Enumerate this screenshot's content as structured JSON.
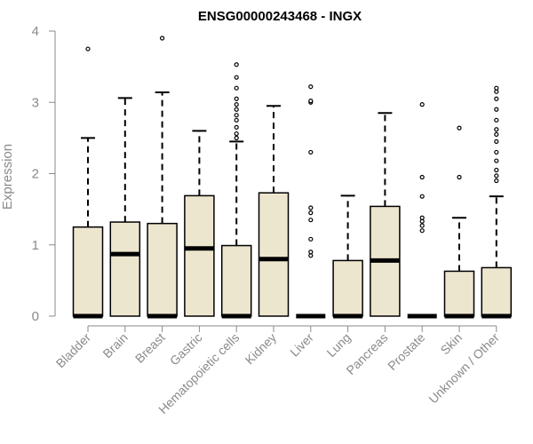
{
  "chart_data": {
    "type": "boxplot",
    "title": "ENSG00000243468 - INGX",
    "xlabel": "",
    "ylabel": "Expression",
    "ylim": [
      0,
      4
    ],
    "yticks": [
      0,
      1,
      2,
      3,
      4
    ],
    "grid": false,
    "legend": "none",
    "colors": {
      "box_fill": "#ede6cf",
      "box_stroke": "#000000",
      "axis": "#8a8a8a"
    },
    "categories": [
      "Bladder",
      "Brain",
      "Breast",
      "Gastric",
      "Hematopoietic cells",
      "Kidney",
      "Liver",
      "Lung",
      "Pancreas",
      "Prostate",
      "Skin",
      "Unknown / Other"
    ],
    "boxes": [
      {
        "q1": 0,
        "median": 0,
        "q3": 1.25,
        "whisker_low": 0,
        "whisker_high": 2.5,
        "outliers": [
          3.75
        ]
      },
      {
        "q1": 0,
        "median": 0.87,
        "q3": 1.32,
        "whisker_low": 0,
        "whisker_high": 3.06,
        "outliers": []
      },
      {
        "q1": 0,
        "median": 0,
        "q3": 1.3,
        "whisker_low": 0,
        "whisker_high": 3.14,
        "outliers": [
          3.9
        ]
      },
      {
        "q1": 0,
        "median": 0.95,
        "q3": 1.69,
        "whisker_low": 0,
        "whisker_high": 2.6,
        "outliers": []
      },
      {
        "q1": 0,
        "median": 0,
        "q3": 0.99,
        "whisker_low": 0,
        "whisker_high": 2.45,
        "outliers": [
          2.5,
          2.56,
          2.65,
          2.75,
          2.82,
          2.9,
          2.97,
          3.05,
          3.2,
          3.35,
          3.53
        ]
      },
      {
        "q1": 0,
        "median": 0.8,
        "q3": 1.73,
        "whisker_low": 0,
        "whisker_high": 2.95,
        "outliers": []
      },
      {
        "q1": 0,
        "median": 0,
        "q3": 0,
        "whisker_low": 0,
        "whisker_high": 0,
        "outliers": [
          0.85,
          0.9,
          1.08,
          1.35,
          1.45,
          1.52,
          2.3,
          3.0,
          3.02,
          3.22
        ]
      },
      {
        "q1": 0,
        "median": 0,
        "q3": 0.78,
        "whisker_low": 0,
        "whisker_high": 1.69,
        "outliers": []
      },
      {
        "q1": 0,
        "median": 0.78,
        "q3": 1.54,
        "whisker_low": 0,
        "whisker_high": 2.85,
        "outliers": []
      },
      {
        "q1": 0,
        "median": 0,
        "q3": 0,
        "whisker_low": 0,
        "whisker_high": 0,
        "outliers": [
          1.2,
          1.27,
          1.33,
          1.38,
          1.68,
          1.95,
          2.97
        ]
      },
      {
        "q1": 0,
        "median": 0,
        "q3": 0.63,
        "whisker_low": 0,
        "whisker_high": 1.38,
        "outliers": [
          1.95,
          2.64
        ]
      },
      {
        "q1": 0,
        "median": 0,
        "q3": 0.68,
        "whisker_low": 0,
        "whisker_high": 1.68,
        "outliers": [
          1.9,
          1.97,
          2.05,
          2.18,
          2.3,
          2.45,
          2.55,
          2.62,
          2.75,
          2.9,
          3.05,
          3.15,
          3.2
        ]
      }
    ]
  }
}
